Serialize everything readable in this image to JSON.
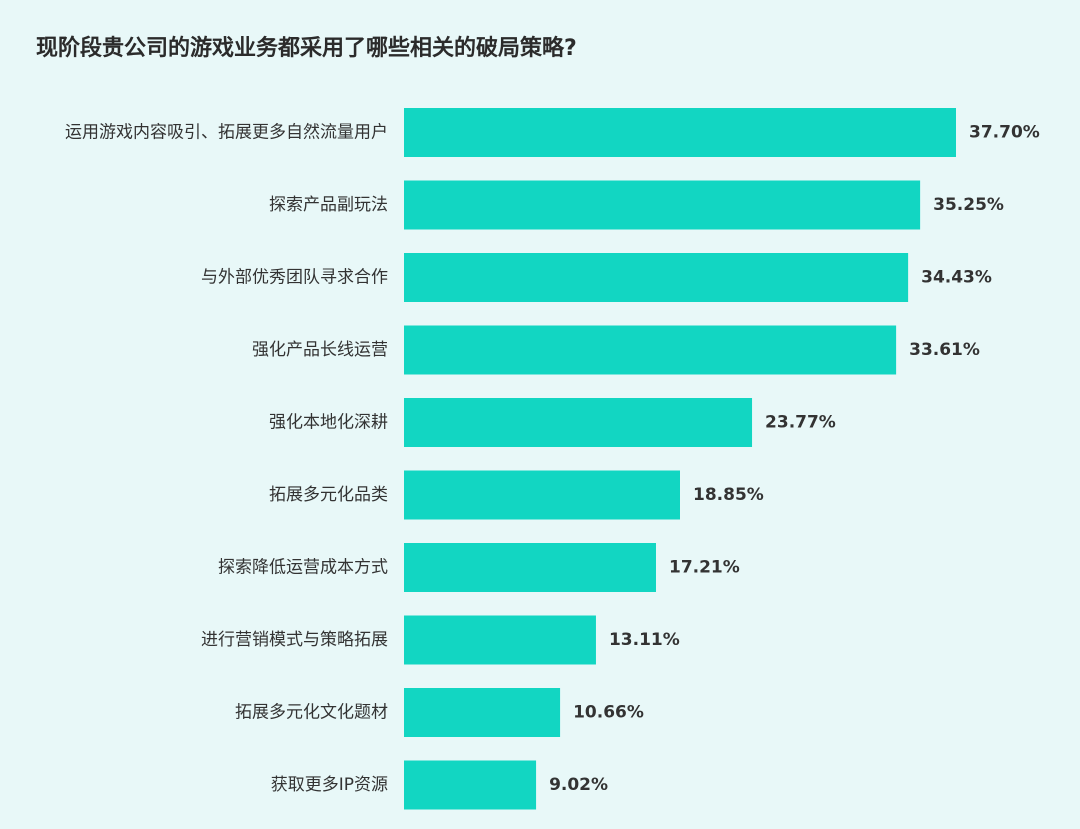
{
  "chart_data": {
    "type": "bar",
    "orientation": "horizontal",
    "title": "现阶段贵公司的游戏业务都采用了哪些相关的破局策略?",
    "categories": [
      "运用游戏内容吸引、拓展更多自然流量用户",
      "探索产品副玩法",
      "与外部优秀团队寻求合作",
      "强化产品长线运营",
      "强化本地化深耕",
      "拓展多元化品类",
      "探索降低运营成本方式",
      "进行营销模式与策略拓展",
      "拓展多元化文化题材",
      "获取更多IP资源"
    ],
    "values": [
      37.7,
      35.25,
      34.43,
      33.61,
      23.77,
      18.85,
      17.21,
      13.11,
      10.66,
      9.02
    ],
    "value_labels": [
      "37.70%",
      "35.25%",
      "34.43%",
      "33.61%",
      "23.77%",
      "18.85%",
      "17.21%",
      "13.11%",
      "10.66%",
      "9.02%"
    ],
    "unit": "%",
    "grid": false,
    "legend": "none",
    "colors": {
      "bar": "#12d6c2",
      "background": "#e8f8f8",
      "text": "#333333"
    }
  }
}
